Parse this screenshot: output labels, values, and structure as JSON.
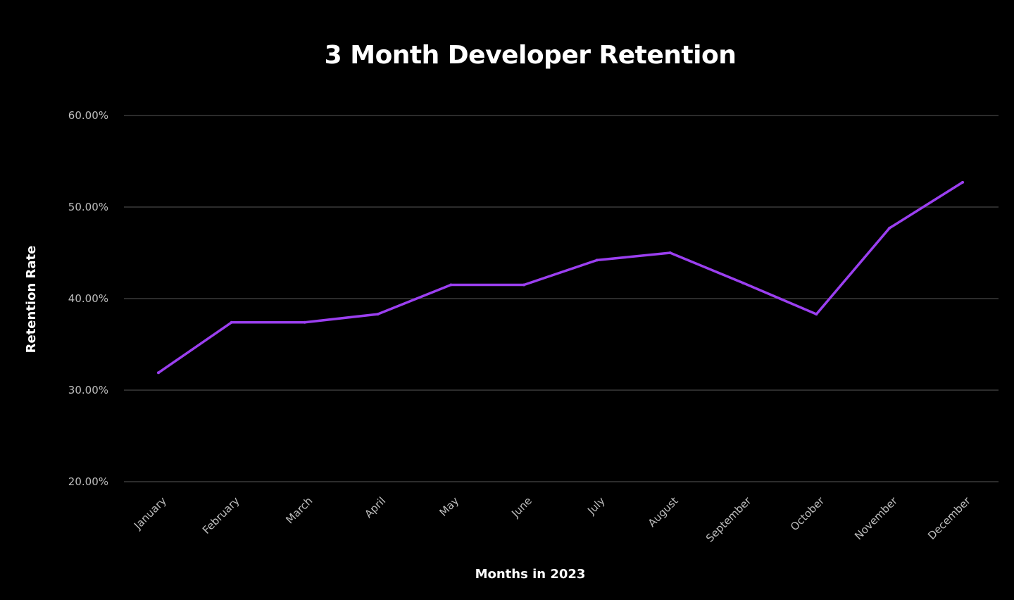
{
  "chart_data": {
    "type": "line",
    "title": "3 Month Developer Retention",
    "xlabel": "Months in 2023",
    "ylabel": "Retention Rate",
    "categories": [
      "January",
      "February",
      "March",
      "April",
      "May",
      "June",
      "July",
      "August",
      "September",
      "October",
      "November",
      "December"
    ],
    "series": [
      {
        "name": "3 Month Developer Retention",
        "values": [
          31.9,
          37.4,
          37.4,
          38.3,
          41.5,
          41.5,
          44.2,
          45.0,
          41.7,
          38.3,
          47.7,
          52.7
        ]
      }
    ],
    "ylim": [
      20,
      60
    ],
    "yticks": [
      20,
      30,
      40,
      50,
      60
    ],
    "ytick_labels": [
      "20.00%",
      "30.00%",
      "40.00%",
      "50.00%",
      "60.00%"
    ],
    "grid": true,
    "legend": "none"
  },
  "colors": {
    "background": "#000000",
    "line": "#9b3ff0",
    "grid": "#3b3b3b",
    "text": "#ffffff",
    "tick_text": "#bdbdbd"
  }
}
